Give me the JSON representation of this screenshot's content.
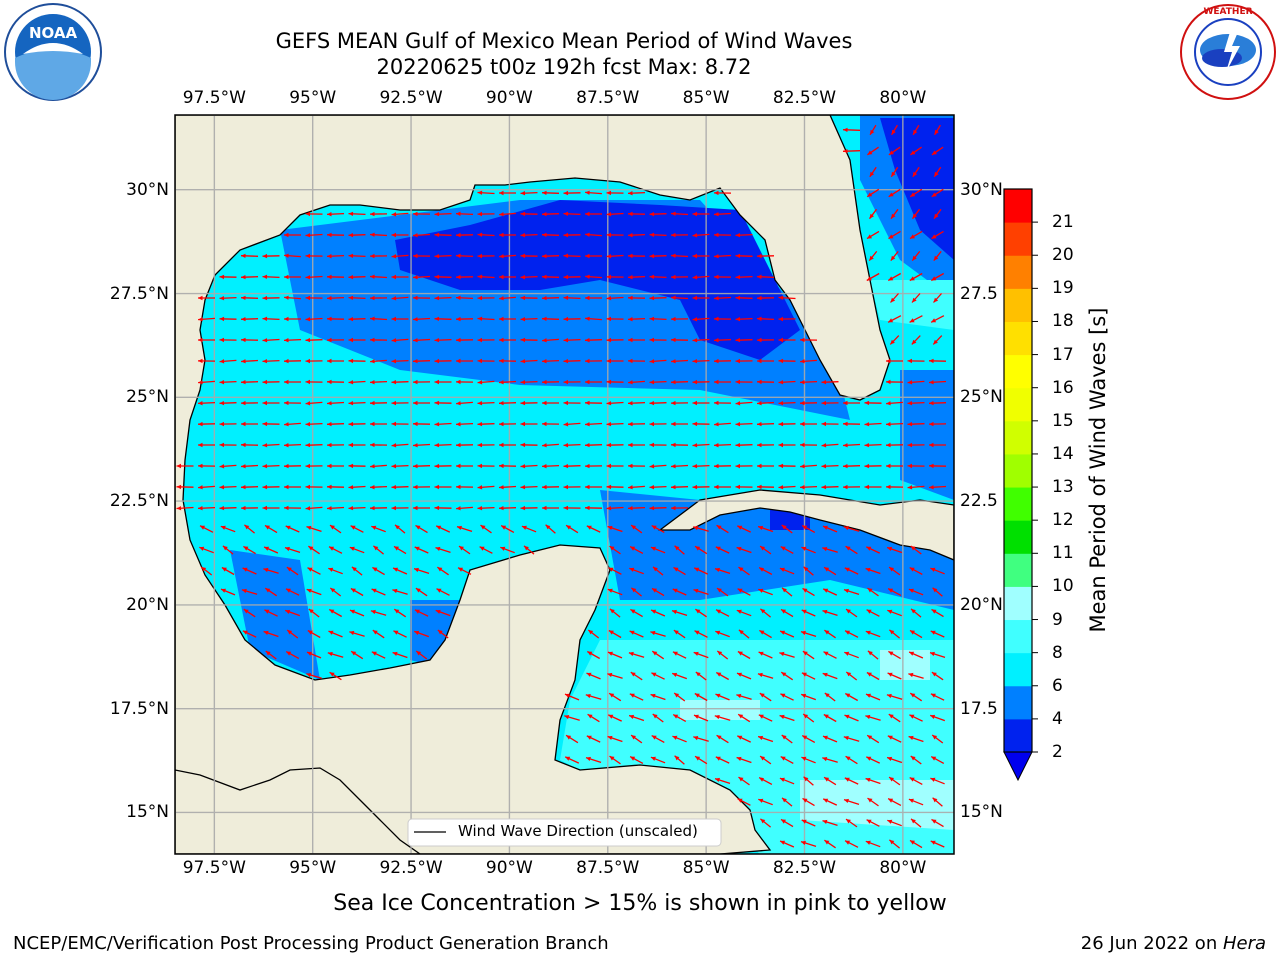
{
  "title": {
    "line1": "GEFS MEAN Gulf of Mexico Mean Period of Wind Waves",
    "line2": "20220625 t00z 192h fcst   Max: 8.72"
  },
  "logos": {
    "left": "NOAA",
    "left_ring_text": "NATIONAL OCEANIC AND ATMOSPHERIC ADMINISTRATION · U.S. DEPARTMENT OF COMMERCE",
    "right_ring_text": "NATIONAL WEATHER SERVICE"
  },
  "map": {
    "lon_range": [
      -98.5,
      -78.7
    ],
    "lat_range": [
      14.0,
      31.8
    ],
    "lon_ticks": [
      "97.5°W",
      "95°W",
      "92.5°W",
      "90°W",
      "87.5°W",
      "85°W",
      "82.5°W",
      "80°W"
    ],
    "lat_ticks": [
      "30°N",
      "27.5°N",
      "25°N",
      "22.5°N",
      "20°N",
      "17.5°N",
      "15°N"
    ],
    "right_lat_ticks": [
      "30°N",
      "27.5",
      "25°N",
      "22.5",
      "20°N",
      "17.5",
      "15°N"
    ],
    "land_color": "#efedda",
    "legend_label": "Wind Wave Direction (unscaled)",
    "arrow_color": "#ff0000"
  },
  "colorbar": {
    "label": "Mean Period of Wind Waves [s]",
    "ticks": [
      "2",
      "4",
      "6",
      "8",
      "9",
      "10",
      "11",
      "12",
      "13",
      "14",
      "15",
      "16",
      "17",
      "18",
      "19",
      "20",
      "21"
    ],
    "colors": [
      "#0022ee",
      "#0080ff",
      "#00f0ff",
      "#40ffff",
      "#a0ffff",
      "#40ff80",
      "#00e000",
      "#40ff00",
      "#a0ff00",
      "#d0ff00",
      "#f0ff00",
      "#ffff00",
      "#ffe000",
      "#ffc000",
      "#ff8000",
      "#ff4000",
      "#ff0000"
    ],
    "under_color": "#0000ee"
  },
  "notes": {
    "sea_ice": "Sea Ice Concentration > 15% is shown in pink to yellow"
  },
  "footer": {
    "left": "NCEP/EMC/Verification Post Processing Product Generation Branch",
    "right_date": "26 Jun 2022 on ",
    "right_host": "Hera"
  }
}
